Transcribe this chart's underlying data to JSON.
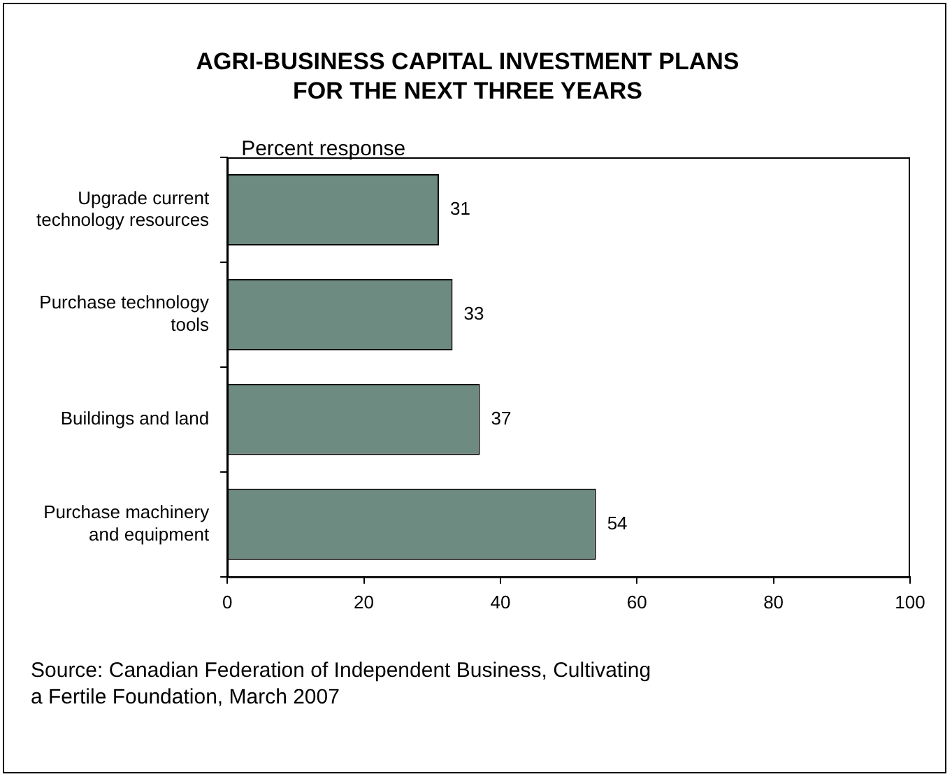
{
  "chart_data": {
    "type": "bar",
    "orientation": "horizontal",
    "title": "AGRI-BUSINESS CAPITAL INVESTMENT PLANS\nFOR THE NEXT THREE YEARS",
    "xlabel": "Percent response",
    "categories": [
      "Upgrade current\ntechnology resources",
      "Purchase technology\ntools",
      "Buildings and land",
      "Purchase machinery\nand equipment"
    ],
    "values": [
      31,
      33,
      37,
      54
    ],
    "color": "#6e8b81",
    "xlim": [
      0,
      100
    ],
    "xticks": [
      0,
      20,
      40,
      60,
      80,
      100
    ],
    "grid": false,
    "legend": false,
    "data_labels": true,
    "annotations": [
      "Source: Canadian Federation of Independent Business, Cultivating\na Fertile Foundation, March 2007"
    ]
  }
}
